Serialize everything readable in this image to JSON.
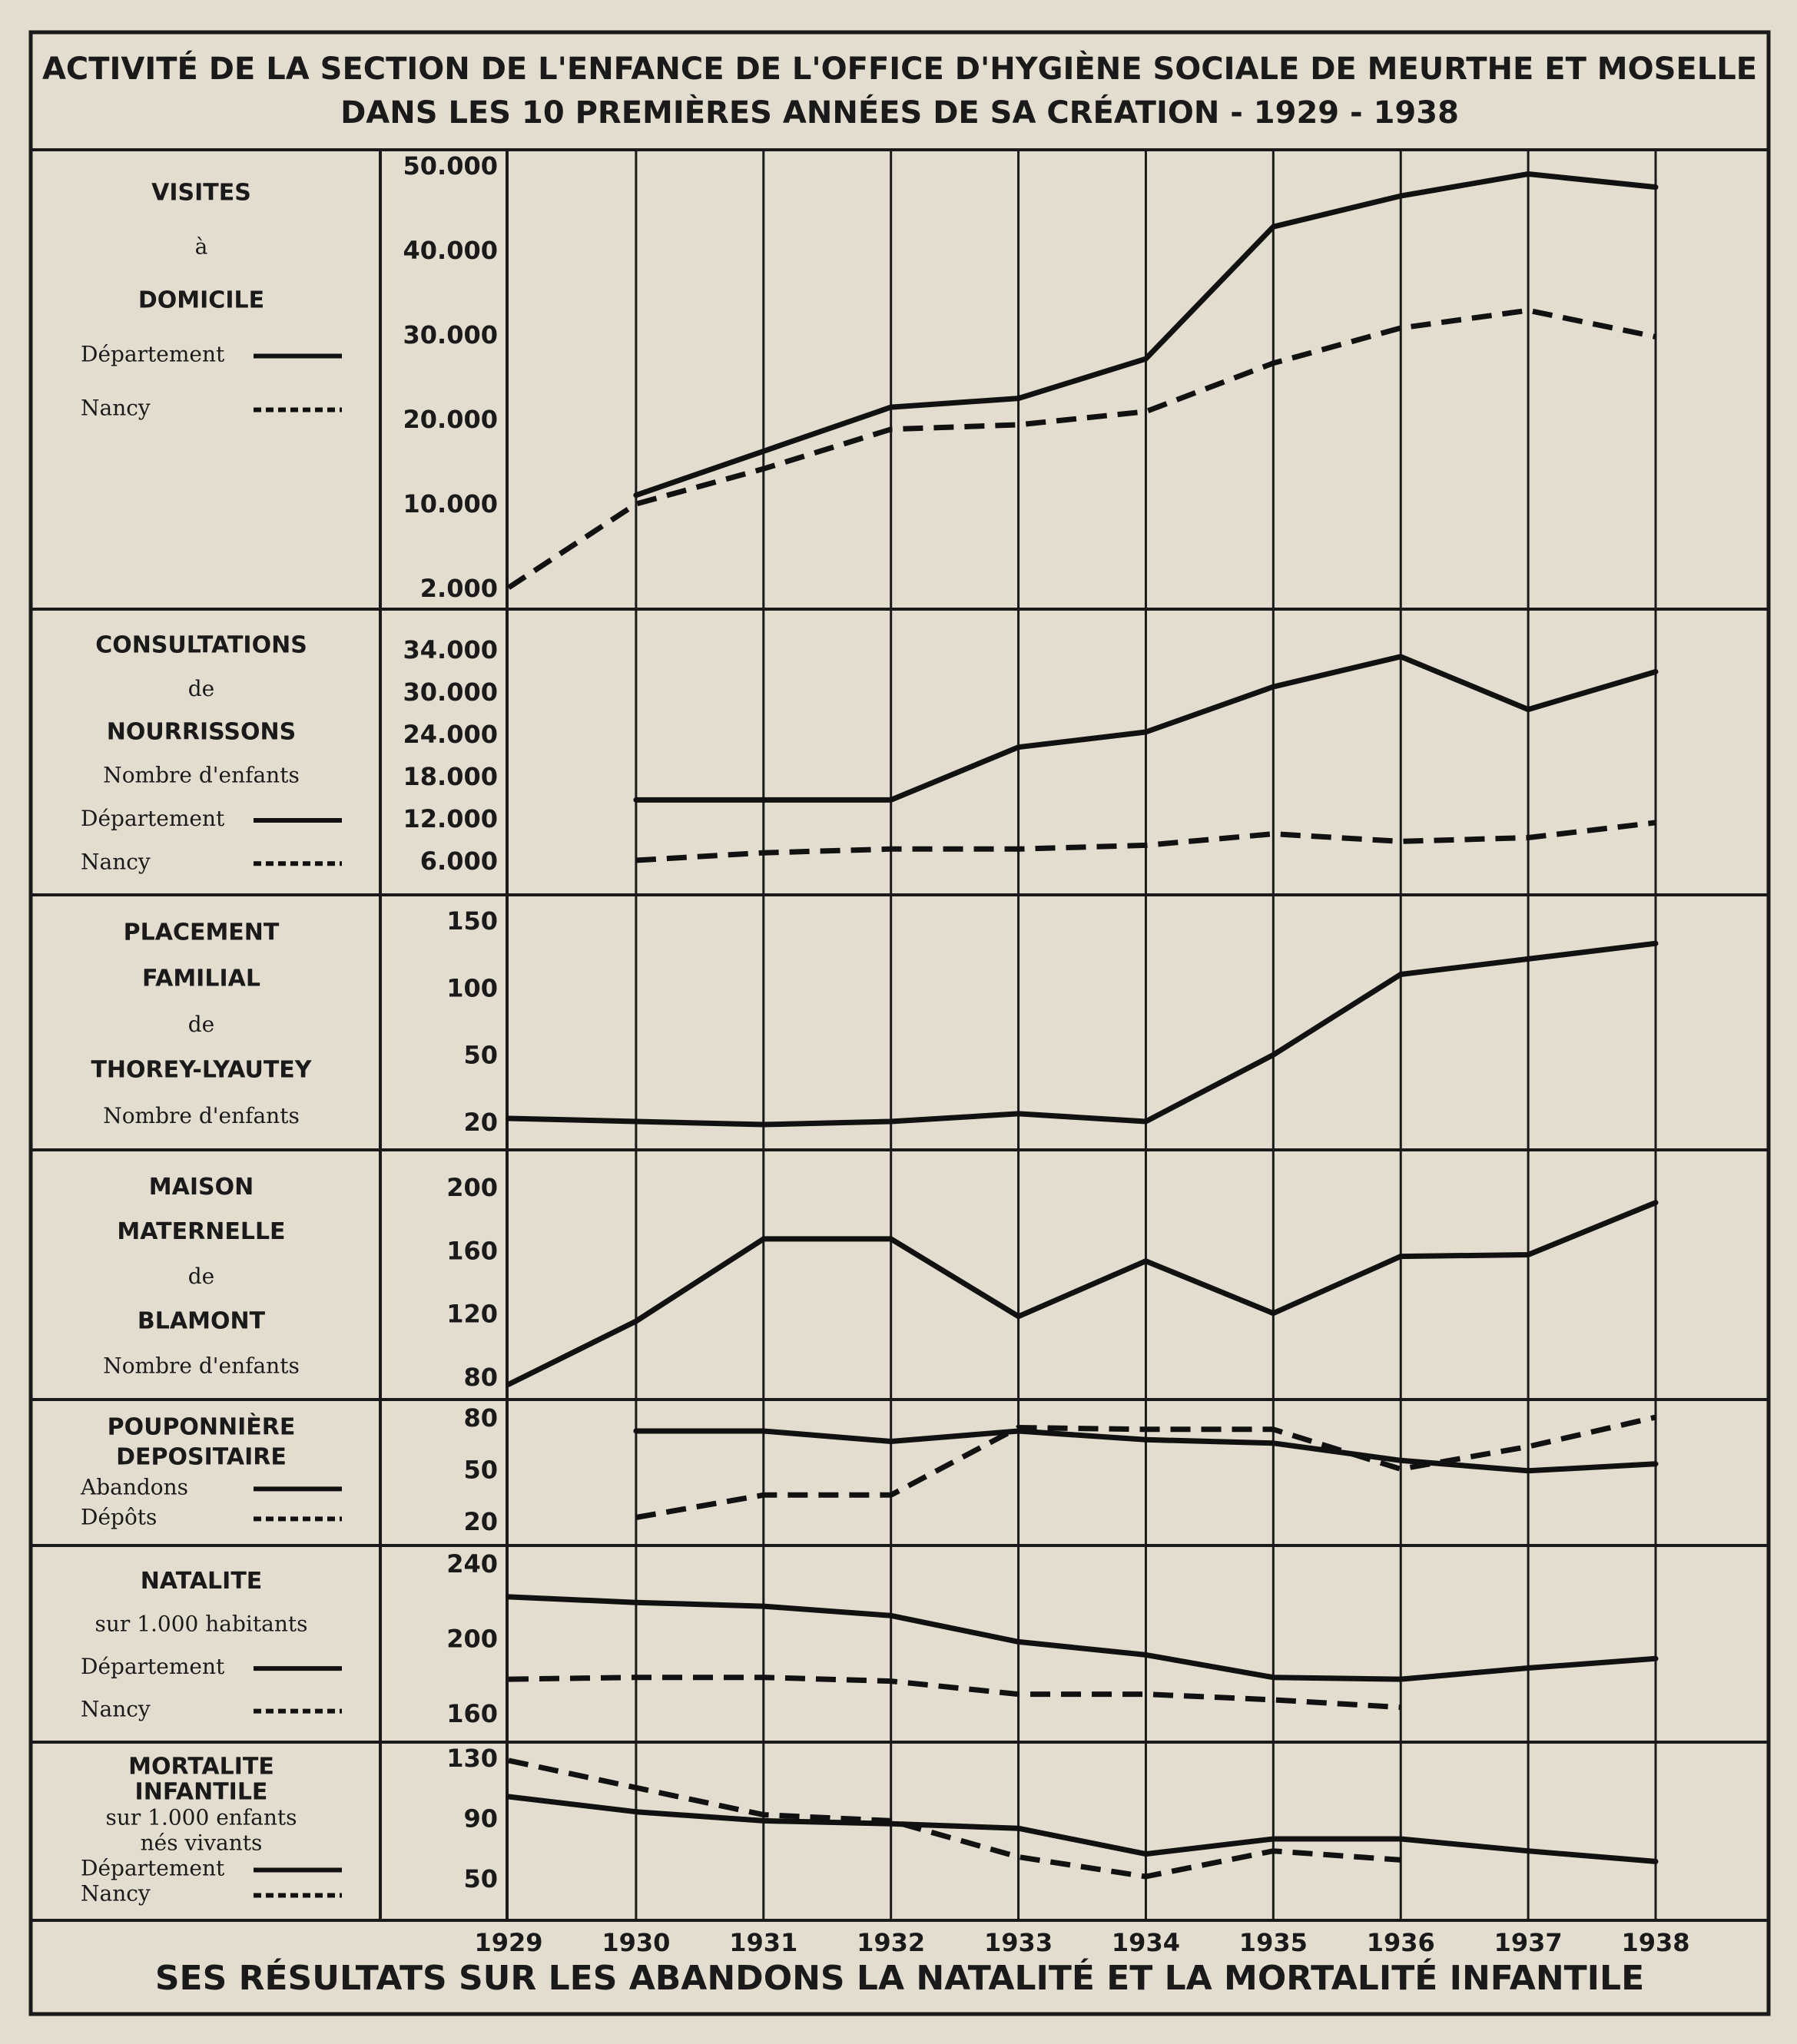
{
  "header": {
    "title_line1": "ACTIVITÉ DE LA SECTION DE L'ENFANCE DE L'OFFICE D'HYGIÈNE SOCIALE DE MEURTHE ET MOSELLE",
    "title_line2": "DANS LES 10 PREMIÈRES ANNÉES DE SA CRÉATION - 1929 - 1938"
  },
  "footer": {
    "caption": "SES RÉSULTATS SUR LES ABANDONS LA NATALITÉ ET LA MORTALITÉ INFANTILE"
  },
  "chart_data": {
    "type": "line",
    "x": [
      "1929",
      "1930",
      "1931",
      "1932",
      "1933",
      "1934",
      "1935",
      "1936",
      "1937",
      "1938"
    ],
    "grid": "vertical lines at each year",
    "panels": [
      {
        "id": "visites",
        "label_lines": [
          "VISITES",
          "à",
          "DOMICILE"
        ],
        "legend": [
          {
            "label": "Département",
            "style": "solid"
          },
          {
            "label": "Nancy",
            "style": "dashed"
          }
        ],
        "yticks": [
          "50.000",
          "40.000",
          "30.000",
          "20.000",
          "10.000",
          "2.000"
        ],
        "ylim": [
          2000,
          50000
        ],
        "series": [
          {
            "name": "Département",
            "style": "solid",
            "values": [
              null,
              12500,
              17500,
              22500,
              23500,
              28000,
              43000,
              46500,
              49000,
              47500
            ]
          },
          {
            "name": "Nancy",
            "style": "dashed",
            "values": [
              2000,
              11500,
              15500,
              20000,
              20500,
              22000,
              27500,
              31500,
              33500,
              30500
            ]
          }
        ]
      },
      {
        "id": "consultations",
        "label_lines": [
          "CONSULTATIONS",
          "de",
          "NOURRISSONS",
          "Nombre d'enfants"
        ],
        "legend": [
          {
            "label": "Département",
            "style": "solid"
          },
          {
            "label": "Nancy",
            "style": "dashed"
          }
        ],
        "yticks": [
          "34.000",
          "30.000",
          "24.000",
          "18.000",
          "12.000",
          "6.000"
        ],
        "ylim": [
          6000,
          34000
        ],
        "series": [
          {
            "name": "Département",
            "style": "solid",
            "values": [
              null,
              14000,
              14000,
              14000,
              21000,
              23000,
              29000,
              33000,
              26000,
              31000
            ]
          },
          {
            "name": "Nancy",
            "style": "dashed",
            "values": [
              null,
              6000,
              7000,
              7500,
              7500,
              8000,
              9500,
              8500,
              9000,
              11000
            ]
          }
        ]
      },
      {
        "id": "placement",
        "label_lines": [
          "PLACEMENT",
          "FAMILIAL",
          "de",
          "THOREY-LYAUTEY",
          "Nombre d'enfants"
        ],
        "yticks": [
          "150",
          "100",
          "50",
          "20"
        ],
        "ylim": [
          20,
          150
        ],
        "series": [
          {
            "name": "",
            "style": "solid",
            "values": [
              22,
              20,
              18,
              20,
              25,
              20,
              63,
              115,
              125,
              135
            ]
          }
        ]
      },
      {
        "id": "maison",
        "label_lines": [
          "MAISON",
          "MATERNELLE",
          "de",
          "BLAMONT",
          "Nombre d'enfants"
        ],
        "yticks": [
          "200",
          "160",
          "120",
          "80"
        ],
        "ylim": [
          80,
          200
        ],
        "series": [
          {
            "name": "",
            "style": "solid",
            "values": [
              75,
              115,
              167,
              167,
              118,
              153,
              120,
              156,
              157,
              190
            ]
          }
        ]
      },
      {
        "id": "pouponniere",
        "label_lines": [
          "POUPONNIÈRE",
          "DEPOSITAIRE"
        ],
        "legend": [
          {
            "label": "Abandons",
            "style": "solid"
          },
          {
            "label": "Dépôts",
            "style": "dashed"
          }
        ],
        "yticks": [
          "80",
          "50",
          "20"
        ],
        "ylim": [
          20,
          80
        ],
        "series": [
          {
            "name": "Abandons",
            "style": "solid",
            "values": [
              null,
              72,
              72,
              66,
              72,
              67,
              65,
              55,
              49,
              53
            ]
          },
          {
            "name": "Dépôts",
            "style": "dashed",
            "values": [
              null,
              22,
              35,
              35,
              74,
              73,
              73,
              50,
              63,
              80
            ]
          }
        ]
      },
      {
        "id": "natalite",
        "label_lines": [
          "NATALITE",
          "sur 1.000 habitants"
        ],
        "legend": [
          {
            "label": "Département",
            "style": "solid"
          },
          {
            "label": "Nancy",
            "style": "dashed"
          }
        ],
        "yticks": [
          "240",
          "200",
          "160"
        ],
        "ylim": [
          160,
          240
        ],
        "series": [
          {
            "name": "Département",
            "style": "solid",
            "values": [
              222,
              219,
              217,
              212,
              198,
              191,
              179,
              178,
              184,
              189
            ]
          },
          {
            "name": "Nancy",
            "style": "dashed",
            "values": [
              178,
              179,
              179,
              177,
              170,
              170,
              167,
              163,
              null,
              null
            ]
          }
        ]
      },
      {
        "id": "mortalite",
        "label_lines": [
          "MORTALITE",
          "INFANTILE",
          "sur 1.000 enfants",
          "nés vivants"
        ],
        "legend": [
          {
            "label": "Département",
            "style": "solid"
          },
          {
            "label": "Nancy",
            "style": "dashed"
          }
        ],
        "yticks": [
          "130",
          "90",
          "50"
        ],
        "ylim": [
          50,
          130
        ],
        "series": [
          {
            "name": "Département",
            "style": "solid",
            "values": [
              104,
              94,
              88,
              86,
              83,
              66,
              76,
              76,
              68,
              61
            ]
          },
          {
            "name": "Nancy",
            "style": "dashed",
            "values": [
              128,
              110,
              92,
              88,
              64,
              51,
              68,
              62,
              null,
              null
            ]
          }
        ]
      }
    ]
  }
}
